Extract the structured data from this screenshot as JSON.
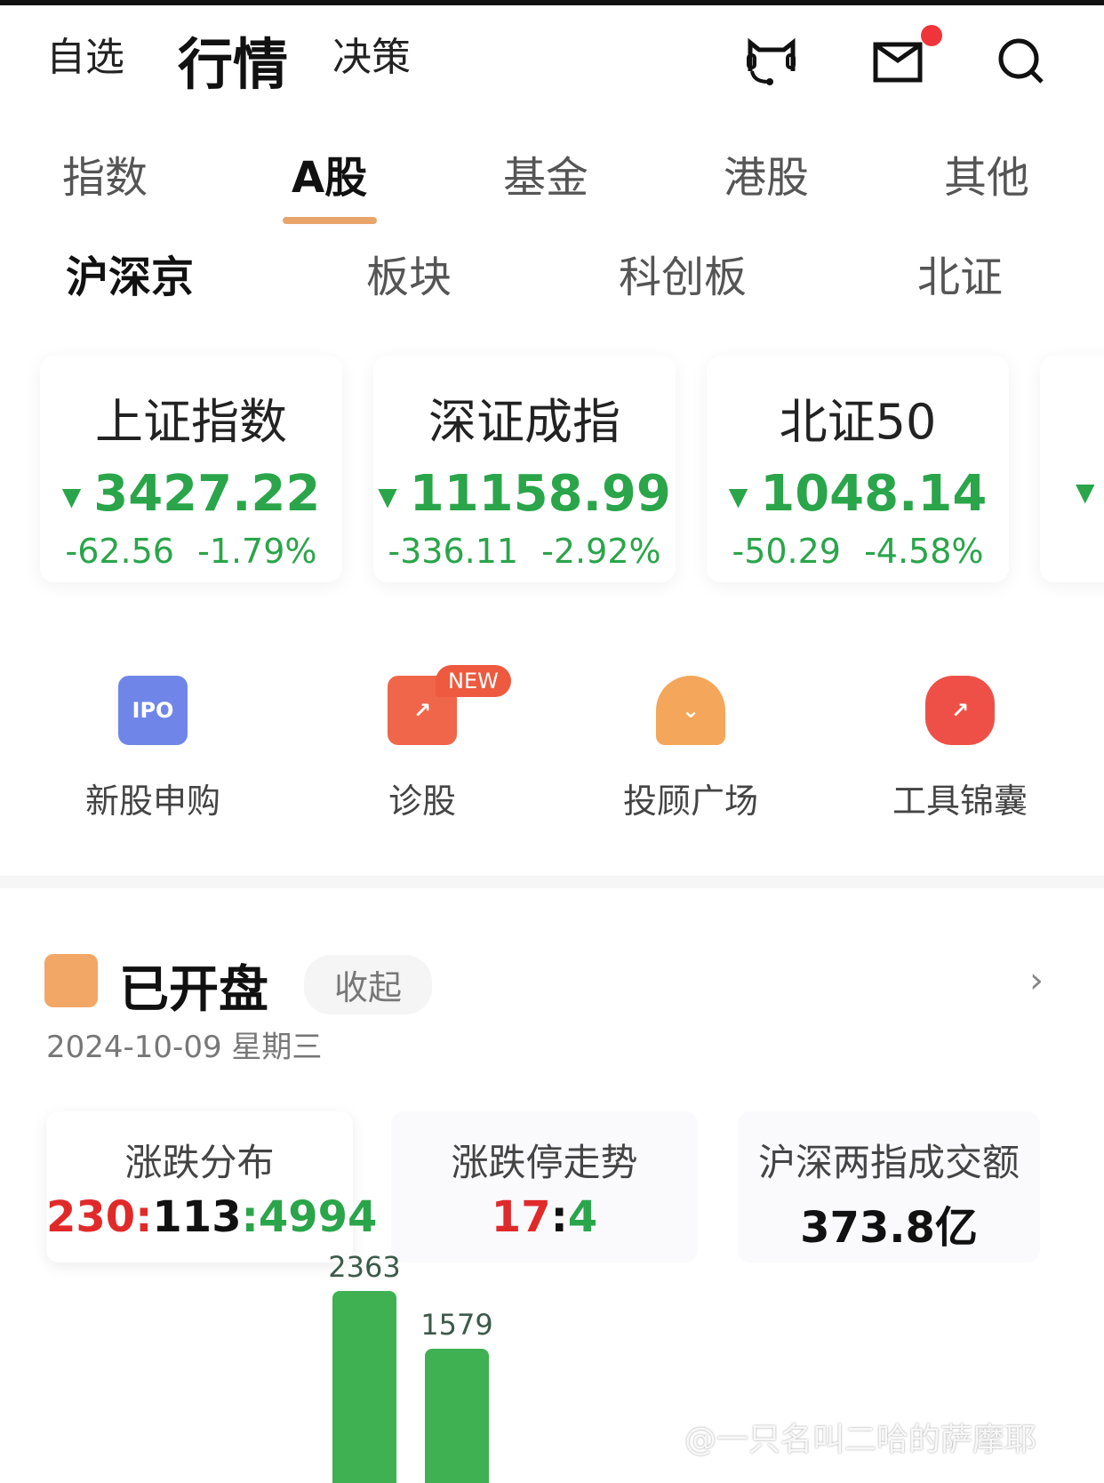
{
  "header": {
    "nav": [
      "自选",
      "行情",
      "决策"
    ],
    "active_nav": 1,
    "icons": [
      "customer-service-cat-icon",
      "mail-icon",
      "search-icon"
    ],
    "mail_badge_color": "#f0353a"
  },
  "tabs": [
    "指数",
    "A股",
    "基金",
    "港股",
    "其他"
  ],
  "active_tab": 1,
  "subtabs": [
    "沪深京",
    "板块",
    "科创板",
    "北证"
  ],
  "active_subtab": 0,
  "indices": [
    {
      "name": "上证指数",
      "price": "3427.22",
      "change": "-62.56",
      "pct": "-1.79%"
    },
    {
      "name": "深证成指",
      "price": "11158.99",
      "change": "-336.11",
      "pct": "-2.92%"
    },
    {
      "name": "北证50",
      "price": "1048.14",
      "change": "-50.29",
      "pct": "-4.58%"
    }
  ],
  "tools": [
    {
      "label": "新股申购",
      "icon": "ipo-calendar-icon",
      "icon_text": "IPO"
    },
    {
      "label": "诊股",
      "icon": "diagnose-stock-icon",
      "badge": "NEW"
    },
    {
      "label": "投顾广场",
      "icon": "advisor-person-icon"
    },
    {
      "label": "工具锦囊",
      "icon": "money-bag-icon"
    }
  ],
  "market": {
    "status": "已开盘",
    "collapse_label": "收起",
    "date": "2024-10-09 星期三",
    "stats": [
      {
        "title": "涨跌分布",
        "up": "230",
        "flat": "113",
        "down": "4994"
      },
      {
        "title": "涨跌停走势",
        "up": "17",
        "down": "4"
      },
      {
        "title": "沪深两指成交额",
        "value": "373.8亿"
      }
    ]
  },
  "chart_data": {
    "type": "bar",
    "values": [
      2363,
      1579
    ],
    "color": "#3fb152"
  },
  "watermark": "@一只名叫二哈的萨摩耶",
  "colors": {
    "up": "#e02a2a",
    "down": "#2aa54a",
    "accent": "#e8a56a"
  }
}
